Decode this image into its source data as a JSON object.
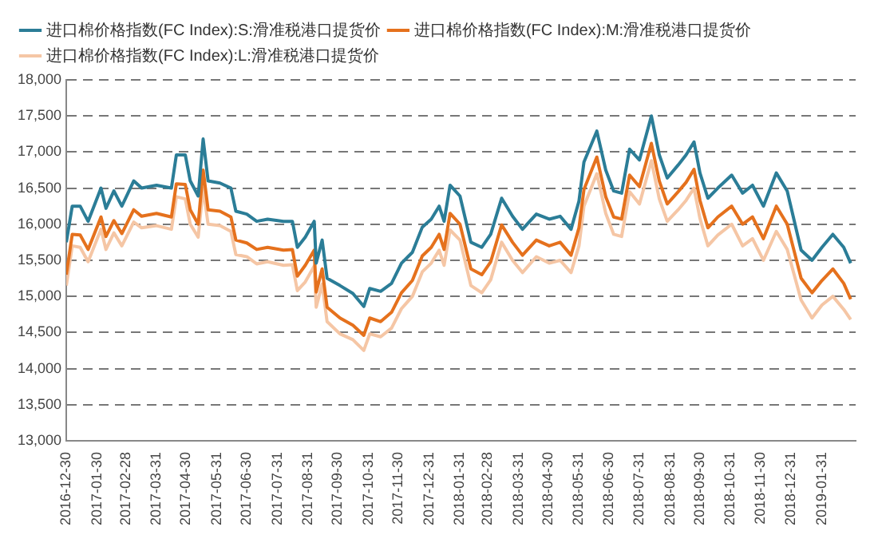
{
  "chart_data": {
    "type": "line",
    "x": [
      "2016-12-30",
      "2017-01-05",
      "2017-01-13",
      "2017-01-21",
      "2017-02-03",
      "2017-02-08",
      "2017-02-16",
      "2017-02-24",
      "2017-03-08",
      "2017-03-16",
      "2017-03-31",
      "2017-04-15",
      "2017-04-20",
      "2017-04-29",
      "2017-05-04",
      "2017-05-12",
      "2017-05-17",
      "2017-05-22",
      "2017-06-03",
      "2017-06-14",
      "2017-06-19",
      "2017-06-30",
      "2017-07-10",
      "2017-07-21",
      "2017-08-06",
      "2017-08-15",
      "2017-08-20",
      "2017-08-28",
      "2017-09-06",
      "2017-09-08",
      "2017-09-14",
      "2017-09-19",
      "2017-10-02",
      "2017-10-15",
      "2017-10-26",
      "2017-11-01",
      "2017-11-12",
      "2017-11-23",
      "2017-12-03",
      "2017-12-14",
      "2017-12-24",
      "2018-01-02",
      "2018-01-10",
      "2018-01-15",
      "2018-01-21",
      "2018-01-31",
      "2018-02-11",
      "2018-02-22",
      "2018-03-03",
      "2018-03-14",
      "2018-03-25",
      "2018-04-04",
      "2018-04-18",
      "2018-05-01",
      "2018-05-12",
      "2018-05-23",
      "2018-05-31",
      "2018-06-05",
      "2018-06-18",
      "2018-06-27",
      "2018-07-05",
      "2018-07-13",
      "2018-07-21",
      "2018-07-31",
      "2018-08-12",
      "2018-08-20",
      "2018-08-28",
      "2018-09-08",
      "2018-09-16",
      "2018-09-24",
      "2018-09-30",
      "2018-10-08",
      "2018-10-18",
      "2018-11-01",
      "2018-11-12",
      "2018-11-22",
      "2018-12-03",
      "2018-12-16",
      "2018-12-27",
      "2019-01-10",
      "2019-01-21",
      "2019-01-31",
      "2019-02-11",
      "2019-02-22",
      "2019-03-01"
    ],
    "series": [
      {
        "name": "进口棉价格指数(FC Index):S:滑准税港口提货价",
        "color": "#2b7d97",
        "values": [
          15750,
          16250,
          16250,
          16040,
          16500,
          16220,
          16460,
          16250,
          16600,
          16500,
          16540,
          16500,
          16960,
          16960,
          16600,
          16390,
          17180,
          16600,
          16570,
          16500,
          16180,
          16140,
          16040,
          16070,
          16040,
          16040,
          15680,
          15820,
          16040,
          15460,
          15780,
          15250,
          15150,
          15040,
          14860,
          15110,
          15070,
          15180,
          15460,
          15610,
          15960,
          16070,
          16250,
          16040,
          16540,
          16390,
          15750,
          15680,
          15860,
          16360,
          16110,
          15930,
          16140,
          16070,
          16110,
          15930,
          16320,
          16860,
          17290,
          16750,
          16460,
          16430,
          17040,
          16890,
          17500,
          16960,
          16640,
          16820,
          16960,
          17140,
          16710,
          16360,
          16500,
          16680,
          16430,
          16540,
          16250,
          16710,
          16460,
          15640,
          15500,
          15680,
          15860,
          15680,
          15460
        ]
      },
      {
        "name": "进口棉价格指数(FC Index):M:滑准税港口提货价",
        "color": "#e5711d",
        "values": [
          15300,
          15860,
          15850,
          15650,
          16100,
          15830,
          16050,
          15870,
          16200,
          16110,
          16150,
          16100,
          16560,
          16550,
          16200,
          16000,
          16750,
          16200,
          16180,
          16100,
          15780,
          15740,
          15650,
          15680,
          15640,
          15650,
          15280,
          15430,
          15640,
          15060,
          15380,
          14850,
          14700,
          14600,
          14460,
          14700,
          14650,
          14780,
          15050,
          15220,
          15560,
          15680,
          15860,
          15650,
          16150,
          16000,
          15380,
          15300,
          15480,
          15990,
          15750,
          15570,
          15780,
          15700,
          15750,
          15570,
          15950,
          16480,
          16930,
          16380,
          16100,
          16070,
          16680,
          16520,
          17120,
          16600,
          16280,
          16450,
          16580,
          16760,
          16330,
          15950,
          16100,
          16250,
          16000,
          16100,
          15800,
          16250,
          16000,
          15250,
          15050,
          15220,
          15380,
          15180,
          14960
        ]
      },
      {
        "name": "进口棉价格指数(FC Index):L:滑准税港口提货价",
        "color": "#f5c6a5",
        "values": [
          15150,
          15700,
          15680,
          15480,
          15930,
          15650,
          15880,
          15700,
          16030,
          15950,
          15980,
          15930,
          16380,
          16350,
          16000,
          15820,
          16500,
          16000,
          15980,
          15900,
          15580,
          15550,
          15450,
          15480,
          15430,
          15440,
          15080,
          15200,
          15420,
          14850,
          15170,
          14650,
          14480,
          14400,
          14250,
          14480,
          14440,
          14560,
          14830,
          15000,
          15340,
          15460,
          15640,
          15430,
          15920,
          15780,
          15150,
          15050,
          15230,
          15750,
          15500,
          15330,
          15550,
          15460,
          15500,
          15330,
          15700,
          16250,
          16700,
          16150,
          15860,
          15830,
          16450,
          16280,
          16880,
          16350,
          16040,
          16200,
          16330,
          16500,
          16080,
          15700,
          15850,
          16000,
          15700,
          15800,
          15500,
          15900,
          15650,
          14950,
          14700,
          14880,
          15000,
          14820,
          14680
        ]
      }
    ],
    "xlim": [
      "2016-12-30",
      "2019-03-06"
    ],
    "xticks": [
      "2016-12-30",
      "2017-01-30",
      "2017-02-28",
      "2017-03-31",
      "2017-04-30",
      "2017-05-31",
      "2017-06-30",
      "2017-07-31",
      "2017-08-31",
      "2017-09-30",
      "2017-10-31",
      "2017-11-30",
      "2017-12-31",
      "2018-01-31",
      "2018-02-28",
      "2018-03-31",
      "2018-04-30",
      "2018-05-31",
      "2018-06-30",
      "2018-07-31",
      "2018-08-31",
      "2018-09-30",
      "2018-10-31",
      "2018-11-30",
      "2018-12-31",
      "2019-01-31"
    ],
    "ylim": [
      13000,
      18000
    ],
    "yticks": [
      {
        "value": 13000,
        "label": "13,000"
      },
      {
        "value": 13500,
        "label": "13,500"
      },
      {
        "value": 14000,
        "label": "14,000"
      },
      {
        "value": 14500,
        "label": "14,500"
      },
      {
        "value": 15000,
        "label": "15,000"
      },
      {
        "value": 15500,
        "label": "15,500"
      },
      {
        "value": 16000,
        "label": "16,000"
      },
      {
        "value": 16500,
        "label": "16,500"
      },
      {
        "value": 17000,
        "label": "17,000"
      },
      {
        "value": 17500,
        "label": "17,500"
      },
      {
        "value": 18000,
        "label": "18,000"
      }
    ],
    "grid": "y",
    "legend": "top",
    "marker": "none",
    "line_style": "solid"
  }
}
